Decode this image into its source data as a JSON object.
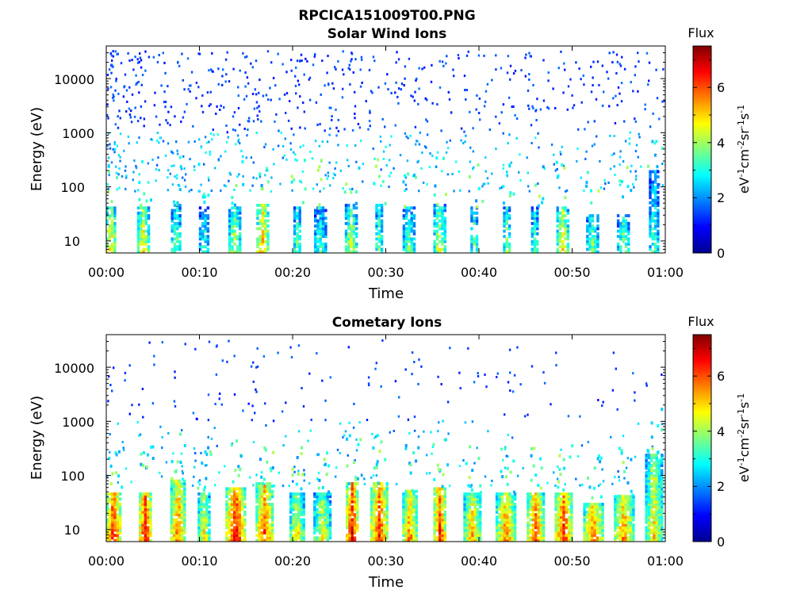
{
  "figure_title": "RPCICA151009T00.PNG",
  "colorbar": {
    "label": "Flux",
    "unit_label": "eV-1cm-2sr-1s-1",
    "ticks": [
      "0",
      "2",
      "4",
      "6"
    ],
    "range": [
      0,
      7.5
    ],
    "colormap": "jet"
  },
  "panels": [
    {
      "title": "Solar Wind Ions",
      "xlabel": "Time",
      "ylabel": "Energy (eV)",
      "xticks": [
        "00:00",
        "00:10",
        "00:20",
        "00:30",
        "00:40",
        "00:50",
        "01:00"
      ],
      "yticks": [
        "10",
        "100",
        "1000",
        "10000"
      ]
    },
    {
      "title": "Cometary Ions",
      "xlabel": "Time",
      "ylabel": "Energy (eV)",
      "xticks": [
        "00:00",
        "00:10",
        "00:20",
        "00:30",
        "00:40",
        "00:50",
        "01:00"
      ],
      "yticks": [
        "10",
        "100",
        "1000",
        "10000"
      ]
    }
  ],
  "chart_data": [
    {
      "type": "heatmap",
      "title": "Solar Wind Ions",
      "xlabel": "Time",
      "ylabel": "Energy (eV)",
      "x_range_minutes": [
        0,
        60
      ],
      "y_range_eV": [
        6,
        40000
      ],
      "y_scale": "log",
      "z_label": "Flux",
      "z_range": [
        0,
        7.5
      ],
      "bursts": [
        {
          "t": 0.5,
          "flux": 5.2,
          "top_eV": 40
        },
        {
          "t": 4.0,
          "flux": 5.0,
          "top_eV": 45
        },
        {
          "t": 7.5,
          "flux": 4.0,
          "top_eV": 45
        },
        {
          "t": 10.5,
          "flux": 3.5,
          "top_eV": 40
        },
        {
          "t": 13.8,
          "flux": 4.5,
          "top_eV": 40
        },
        {
          "t": 16.8,
          "flux": 5.5,
          "top_eV": 45
        },
        {
          "t": 20.5,
          "flux": 3.8,
          "top_eV": 40
        },
        {
          "t": 23.0,
          "flux": 3.5,
          "top_eV": 40
        },
        {
          "t": 26.3,
          "flux": 4.5,
          "top_eV": 45
        },
        {
          "t": 29.3,
          "flux": 4.0,
          "top_eV": 45
        },
        {
          "t": 32.5,
          "flux": 3.8,
          "top_eV": 40
        },
        {
          "t": 35.8,
          "flux": 4.5,
          "top_eV": 45
        },
        {
          "t": 39.5,
          "flux": 3.8,
          "top_eV": 40
        },
        {
          "t": 43.0,
          "flux": 4.0,
          "top_eV": 40
        },
        {
          "t": 46.0,
          "flux": 3.8,
          "top_eV": 40
        },
        {
          "t": 49.0,
          "flux": 5.0,
          "top_eV": 40
        },
        {
          "t": 52.2,
          "flux": 4.0,
          "top_eV": 30
        },
        {
          "t": 55.5,
          "flux": 4.0,
          "top_eV": 30
        },
        {
          "t": 58.8,
          "flux": 3.5,
          "top_eV": 200
        }
      ]
    },
    {
      "type": "heatmap",
      "title": "Cometary Ions",
      "xlabel": "Time",
      "ylabel": "Energy (eV)",
      "x_range_minutes": [
        0,
        60
      ],
      "y_range_eV": [
        6,
        40000
      ],
      "y_scale": "log",
      "z_label": "Flux",
      "z_range": [
        0,
        7.5
      ],
      "bursts": [
        {
          "t": 0.8,
          "flux": 6.8,
          "top_eV": 45
        },
        {
          "t": 4.2,
          "flux": 6.8,
          "top_eV": 45
        },
        {
          "t": 7.7,
          "flux": 6.0,
          "top_eV": 80
        },
        {
          "t": 10.5,
          "flux": 5.0,
          "top_eV": 45
        },
        {
          "t": 13.9,
          "flux": 6.8,
          "top_eV": 60
        },
        {
          "t": 17.0,
          "flux": 6.2,
          "top_eV": 70
        },
        {
          "t": 20.5,
          "flux": 5.0,
          "top_eV": 45
        },
        {
          "t": 23.2,
          "flux": 4.8,
          "top_eV": 45
        },
        {
          "t": 26.4,
          "flux": 6.8,
          "top_eV": 70
        },
        {
          "t": 29.3,
          "flux": 6.5,
          "top_eV": 70
        },
        {
          "t": 32.6,
          "flux": 5.8,
          "top_eV": 50
        },
        {
          "t": 35.8,
          "flux": 6.5,
          "top_eV": 60
        },
        {
          "t": 39.3,
          "flux": 5.5,
          "top_eV": 45
        },
        {
          "t": 42.9,
          "flux": 5.8,
          "top_eV": 45
        },
        {
          "t": 46.1,
          "flux": 6.2,
          "top_eV": 45
        },
        {
          "t": 49.1,
          "flux": 6.5,
          "top_eV": 45
        },
        {
          "t": 52.3,
          "flux": 6.0,
          "top_eV": 30
        },
        {
          "t": 55.6,
          "flux": 5.8,
          "top_eV": 40
        },
        {
          "t": 58.8,
          "flux": 5.0,
          "top_eV": 250
        }
      ]
    }
  ]
}
